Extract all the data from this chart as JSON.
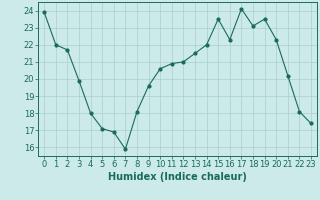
{
  "x": [
    0,
    1,
    2,
    3,
    4,
    5,
    6,
    7,
    8,
    9,
    10,
    11,
    12,
    13,
    14,
    15,
    16,
    17,
    18,
    19,
    20,
    21,
    22,
    23
  ],
  "y": [
    23.9,
    22.0,
    21.7,
    19.9,
    18.0,
    17.1,
    16.9,
    15.9,
    18.1,
    19.6,
    20.6,
    20.9,
    21.0,
    21.5,
    22.0,
    23.5,
    22.3,
    24.1,
    23.1,
    23.5,
    22.3,
    20.2,
    18.1,
    17.4
  ],
  "line_color": "#1a6b5a",
  "marker": "o",
  "marker_size": 2,
  "bg_color": "#cceae7",
  "grid_color": "#aacfcc",
  "xlabel": "Humidex (Indice chaleur)",
  "ylim": [
    15.5,
    24.5
  ],
  "xlim": [
    -0.5,
    23.5
  ],
  "yticks": [
    16,
    17,
    18,
    19,
    20,
    21,
    22,
    23,
    24
  ],
  "xticks": [
    0,
    1,
    2,
    3,
    4,
    5,
    6,
    7,
    8,
    9,
    10,
    11,
    12,
    13,
    14,
    15,
    16,
    17,
    18,
    19,
    20,
    21,
    22,
    23
  ],
  "tick_color": "#1a6b5a",
  "label_color": "#1a6b5a",
  "spine_color": "#1a6b5a",
  "tick_fontsize": 6,
  "xlabel_fontsize": 7
}
